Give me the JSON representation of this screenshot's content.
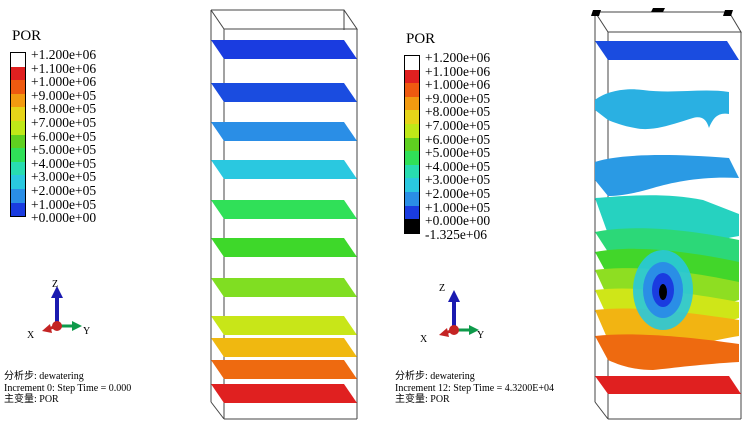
{
  "left": {
    "legend": {
      "title": "POR",
      "labels": [
        "+1.200e+06",
        "+1.100e+06",
        "+1.000e+06",
        "+9.000e+05",
        "+8.000e+05",
        "+7.000e+05",
        "+6.000e+05",
        "+5.000e+05",
        "+4.000e+05",
        "+3.000e+05",
        "+2.000e+05",
        "+1.000e+05",
        "+0.000e+00"
      ],
      "colors": [
        "#ffffff",
        "#e02020",
        "#ee5a10",
        "#f29a10",
        "#e6d419",
        "#bfe818",
        "#5fd020",
        "#30e058",
        "#28dcb0",
        "#2ac8e0",
        "#2a8ee6",
        "#1a3ce0"
      ]
    },
    "axes": {
      "z": "Z",
      "x": "X",
      "y": "Y"
    },
    "info": {
      "step": "分析步: dewatering",
      "increment": "Increment 0: Step Time = 0.000",
      "variable": "主变量: POR"
    }
  },
  "right": {
    "legend": {
      "title": "POR",
      "labels": [
        "+1.200e+06",
        "+1.100e+06",
        "+1.000e+06",
        "+9.000e+05",
        "+8.000e+05",
        "+7.000e+05",
        "+6.000e+05",
        "+5.000e+05",
        "+4.000e+05",
        "+3.000e+05",
        "+2.000e+05",
        "+1.000e+05",
        "+0.000e+00",
        "-1.325e+06"
      ],
      "colors": [
        "#ffffff",
        "#e02020",
        "#ee5a10",
        "#f29a10",
        "#e6d419",
        "#bfe818",
        "#5fd020",
        "#30e058",
        "#28dcb0",
        "#2ac8e0",
        "#2a8ee6",
        "#1a3ce0",
        "#000000"
      ]
    },
    "axes": {
      "z": "Z",
      "x": "X",
      "y": "Y"
    },
    "info": {
      "step": "分析步: dewatering",
      "increment": "Increment 12: Step Time = 4.3200E+04",
      "variable": "主变量: POR"
    }
  },
  "layer_colors": [
    "#1a3ce0",
    "#1a4ce0",
    "#2a8ee6",
    "#2ac8e0",
    "#30e058",
    "#3ed82a",
    "#80de22",
    "#c8e618",
    "#f0b810",
    "#ee6a10",
    "#e02020"
  ]
}
